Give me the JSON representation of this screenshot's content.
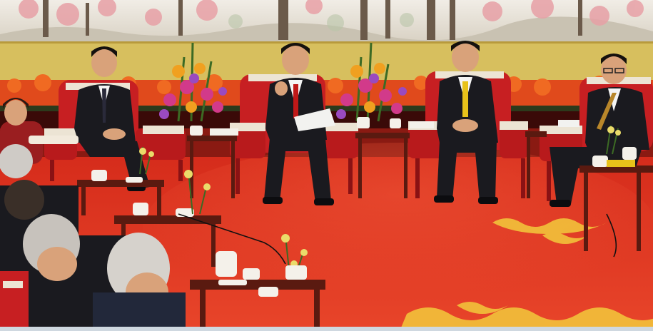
{
  "scene": {
    "kind": "photograph",
    "colors": {
      "carpet": "#e0301f",
      "carpet_shade": "#b81c12",
      "wall_panel": "#d9c060",
      "mural_sky": "#e9e4dc",
      "flower_bank": "#e84a1a",
      "chair_red": "#c71f22",
      "chair_trim": "#ece4d4",
      "table_wood": "#5a1a10",
      "suit": "#1a1a1f",
      "tie_red": "#c01818",
      "tie_yellow": "#e8c21a",
      "skin": "#d9a27a",
      "hair_black": "#15110e",
      "hair_white": "#d8d6d2",
      "gold_pattern": "#f2c23a"
    }
  }
}
